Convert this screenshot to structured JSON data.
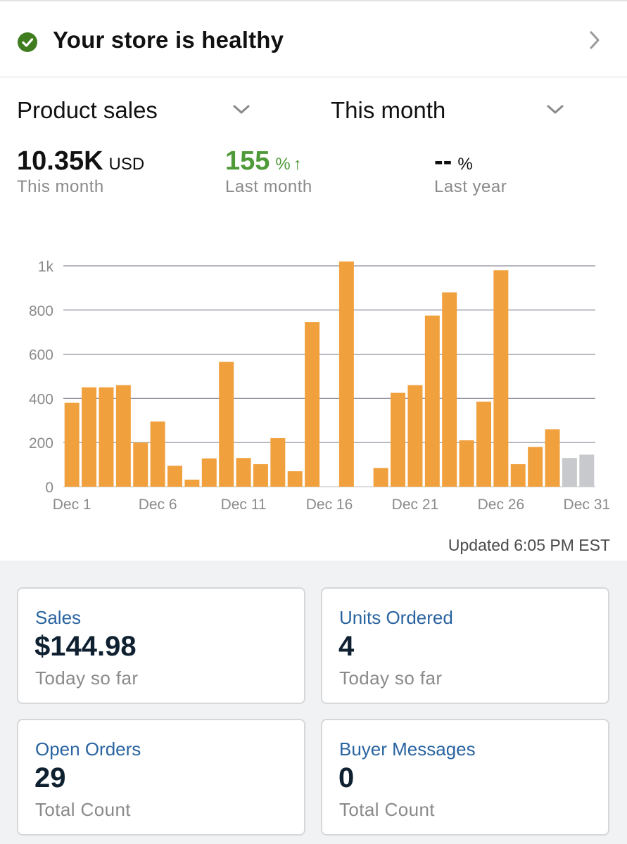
{
  "health": {
    "title": "Your store is healthy",
    "status_color": "#3f7d1f"
  },
  "selectors": {
    "metric": "Product sales",
    "period": "This month"
  },
  "stats": {
    "current": {
      "value": "10.35K",
      "unit": "USD",
      "label": "This month"
    },
    "vs_last_month": {
      "value": "155",
      "unit": "%",
      "arrow": "↑",
      "label": "Last month",
      "color": "#4e9a38"
    },
    "vs_last_year": {
      "value": "--",
      "unit": "%",
      "label": "Last year"
    }
  },
  "chart_data": {
    "type": "bar",
    "categories": [
      "Dec 1",
      "Dec 2",
      "Dec 3",
      "Dec 4",
      "Dec 5",
      "Dec 6",
      "Dec 7",
      "Dec 8",
      "Dec 9",
      "Dec 10",
      "Dec 11",
      "Dec 12",
      "Dec 13",
      "Dec 14",
      "Dec 15",
      "Dec 16",
      "Dec 17",
      "Dec 18",
      "Dec 19",
      "Dec 20",
      "Dec 21",
      "Dec 22",
      "Dec 23",
      "Dec 24",
      "Dec 25",
      "Dec 26",
      "Dec 27",
      "Dec 28",
      "Dec 29",
      "Dec 30",
      "Dec 31"
    ],
    "values": [
      380,
      450,
      450,
      460,
      200,
      295,
      95,
      32,
      128,
      565,
      130,
      102,
      220,
      70,
      745,
      0,
      1020,
      0,
      85,
      425,
      460,
      775,
      880,
      210,
      385,
      980,
      102,
      180,
      260,
      130,
      145
    ],
    "highlight_colors": [
      "#f0a03c",
      "#f0a03c",
      "#f0a03c",
      "#f0a03c",
      "#f0a03c",
      "#f0a03c",
      "#f0a03c",
      "#f0a03c",
      "#f0a03c",
      "#f0a03c",
      "#f0a03c",
      "#f0a03c",
      "#f0a03c",
      "#f0a03c",
      "#f0a03c",
      "#f0a03c",
      "#f0a03c",
      "#f0a03c",
      "#f0a03c",
      "#f0a03c",
      "#f0a03c",
      "#f0a03c",
      "#f0a03c",
      "#f0a03c",
      "#f0a03c",
      "#f0a03c",
      "#f0a03c",
      "#f0a03c",
      "#f0a03c",
      "#c8c9cc",
      "#c8c9cc"
    ],
    "x_tick_labels": [
      "Dec 1",
      "Dec 6",
      "Dec 11",
      "Dec 16",
      "Dec 21",
      "Dec 26",
      "Dec 31"
    ],
    "y_ticks": [
      0,
      200,
      400,
      600,
      800,
      1000
    ],
    "y_tick_labels": [
      "0",
      "200",
      "400",
      "600",
      "800",
      "1k"
    ],
    "ylim": [
      0,
      1000
    ],
    "grid": true,
    "title": "",
    "xlabel": "",
    "ylabel": ""
  },
  "updated": "Updated 6:05 PM EST",
  "cards": [
    {
      "title": "Sales",
      "value": "$144.98",
      "sub": "Today so far"
    },
    {
      "title": "Units Ordered",
      "value": "4",
      "sub": "Today so far"
    },
    {
      "title": "Open Orders",
      "value": "29",
      "sub": "Total Count"
    },
    {
      "title": "Buyer Messages",
      "value": "0",
      "sub": "Total Count"
    }
  ],
  "icons": {
    "status": "check-circle-icon",
    "nav": "chevron-right-icon",
    "dropdown": "chevron-down-icon"
  }
}
